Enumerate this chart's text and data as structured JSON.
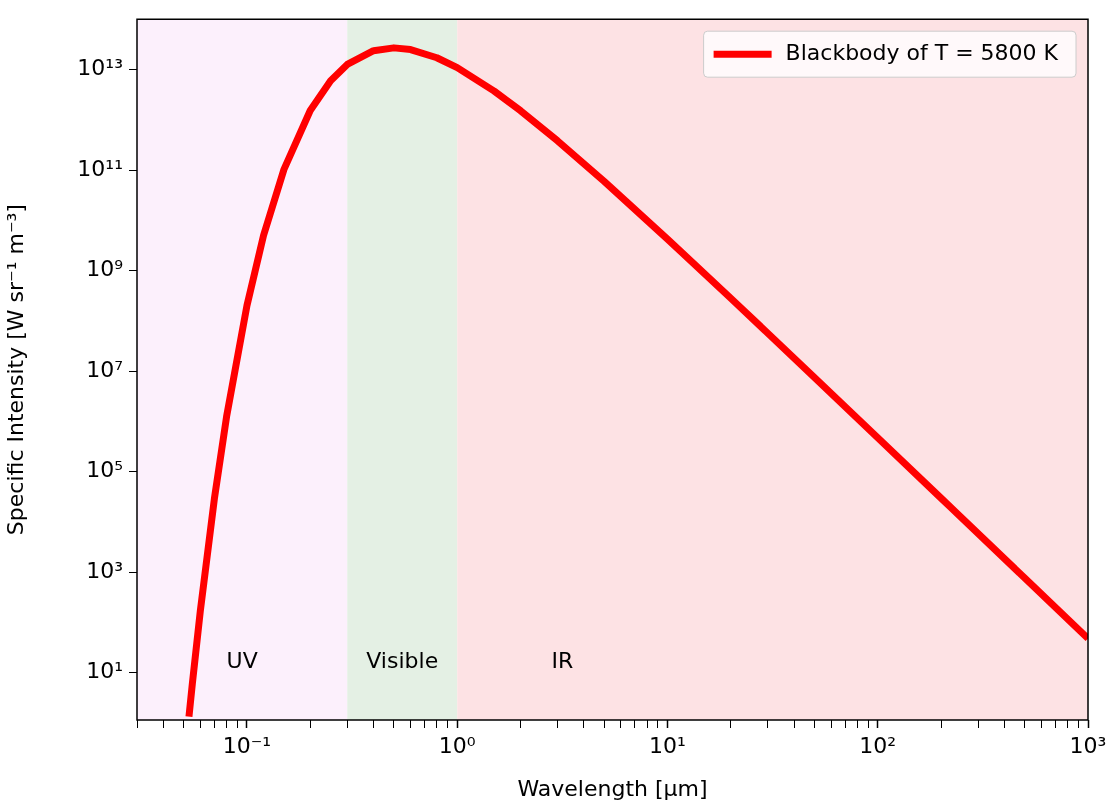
{
  "chart_data": {
    "type": "line",
    "xlabel": "Wavelength [μm]",
    "ylabel": "Specific Intensity [W sr⁻¹ m⁻³]",
    "log": "xy",
    "grid": false,
    "legend": "top right",
    "marker": "none",
    "line_style": "solid",
    "xlim": [
      0.03,
      1000
    ],
    "ylim": [
      1.15,
      100000000000000.0
    ],
    "xticks": [
      {
        "value": 0.03,
        "label": null
      },
      {
        "value": 0.04,
        "label": null
      },
      {
        "value": 0.05,
        "label": null
      },
      {
        "value": 0.06,
        "label": null
      },
      {
        "value": 0.07,
        "label": null
      },
      {
        "value": 0.08,
        "label": null
      },
      {
        "value": 0.09,
        "label": null
      },
      {
        "value": 0.1,
        "label": "10⁻¹"
      },
      {
        "value": 0.2,
        "label": null
      },
      {
        "value": 0.3,
        "label": null
      },
      {
        "value": 0.4,
        "label": null
      },
      {
        "value": 0.5,
        "label": null
      },
      {
        "value": 0.6,
        "label": null
      },
      {
        "value": 0.7,
        "label": null
      },
      {
        "value": 0.8,
        "label": null
      },
      {
        "value": 0.9,
        "label": null
      },
      {
        "value": 1,
        "label": "10⁰"
      },
      {
        "value": 2,
        "label": null
      },
      {
        "value": 3,
        "label": null
      },
      {
        "value": 4,
        "label": null
      },
      {
        "value": 5,
        "label": null
      },
      {
        "value": 6,
        "label": null
      },
      {
        "value": 7,
        "label": null
      },
      {
        "value": 8,
        "label": null
      },
      {
        "value": 9,
        "label": null
      },
      {
        "value": 10,
        "label": "10¹"
      },
      {
        "value": 20,
        "label": null
      },
      {
        "value": 30,
        "label": null
      },
      {
        "value": 40,
        "label": null
      },
      {
        "value": 50,
        "label": null
      },
      {
        "value": 60,
        "label": null
      },
      {
        "value": 70,
        "label": null
      },
      {
        "value": 80,
        "label": null
      },
      {
        "value": 90,
        "label": null
      },
      {
        "value": 100,
        "label": "10²"
      },
      {
        "value": 200,
        "label": null
      },
      {
        "value": 300,
        "label": null
      },
      {
        "value": 400,
        "label": null
      },
      {
        "value": 500,
        "label": null
      },
      {
        "value": 600,
        "label": null
      },
      {
        "value": 700,
        "label": null
      },
      {
        "value": 800,
        "label": null
      },
      {
        "value": 900,
        "label": null
      },
      {
        "value": 1000,
        "label": "10³"
      }
    ],
    "yticks": [
      {
        "value": 10,
        "label": "10¹"
      },
      {
        "value": 1000,
        "label": "10³"
      },
      {
        "value": 100000,
        "label": "10⁵"
      },
      {
        "value": 10000000,
        "label": "10⁷"
      },
      {
        "value": 1000000000,
        "label": "10⁹"
      },
      {
        "value": 100000000000,
        "label": "10¹¹"
      },
      {
        "value": 10000000000000,
        "label": "10¹³"
      }
    ],
    "x": [
      0.053,
      0.055,
      0.06,
      0.07,
      0.08,
      0.1,
      0.12,
      0.15,
      0.2,
      0.25,
      0.3,
      0.4,
      0.5,
      0.6,
      0.8,
      1,
      1.5,
      2,
      3,
      5,
      10,
      20,
      50,
      100,
      200,
      500,
      1000
    ],
    "series": [
      {
        "name": "Blackbody of T = 5800 K",
        "color": "#ff0000",
        "values": [
          1.34,
          6.1,
          169,
          28800,
          1240000,
          201000000,
          5040000000,
          103000000000,
          1530000000000,
          5980000000000,
          12600000000000,
          23600000000000,
          26900000000000,
          24900000000000,
          17100000000000,
          10900000000000,
          3710000000000,
          1515000000000,
          381000000000,
          59300000000,
          4230000000,
          282000000,
          7490000,
          474000,
          29800,
          766,
          48
        ]
      }
    ],
    "bands": [
      {
        "axis": "x",
        "from": 0.03,
        "to": 0.3,
        "label": "UV",
        "color": "#fcf0fc"
      },
      {
        "axis": "x",
        "from": 0.3,
        "to": 1,
        "label": "Visible",
        "color": "#e4f0e4"
      },
      {
        "axis": "x",
        "from": 1,
        "to": 1000,
        "label": "IR",
        "color": "#fde2e4"
      }
    ]
  }
}
